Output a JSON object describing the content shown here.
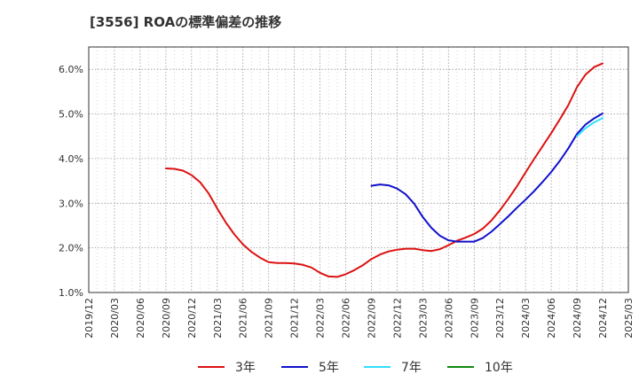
{
  "chart_data": {
    "type": "line",
    "title": "[3556]  ROAの標準偏差の推移",
    "xlabel": "",
    "ylabel": "",
    "ylim": [
      1.0,
      6.5
    ],
    "grid": true,
    "legend_position": "bottom",
    "x_ticks": [
      "2019/12",
      "2020/03",
      "2020/06",
      "2020/09",
      "2020/12",
      "2021/03",
      "2021/06",
      "2021/09",
      "2021/12",
      "2022/03",
      "2022/06",
      "2022/09",
      "2022/12",
      "2023/03",
      "2023/06",
      "2023/09",
      "2023/12",
      "2024/03",
      "2024/06",
      "2024/09",
      "2024/12",
      "2025/03"
    ],
    "y_ticks": [
      "1.0%",
      "2.0%",
      "3.0%",
      "4.0%",
      "5.0%",
      "6.0%"
    ],
    "series": [
      {
        "name": "3年",
        "color": "#dd1111",
        "points": [
          [
            "2020/09",
            3.78
          ],
          [
            "2020/10",
            3.77
          ],
          [
            "2020/11",
            3.73
          ],
          [
            "2020/12",
            3.63
          ],
          [
            "2021/01",
            3.47
          ],
          [
            "2021/02",
            3.22
          ],
          [
            "2021/03",
            2.88
          ],
          [
            "2021/04",
            2.57
          ],
          [
            "2021/05",
            2.3
          ],
          [
            "2021/06",
            2.08
          ],
          [
            "2021/07",
            1.91
          ],
          [
            "2021/08",
            1.78
          ],
          [
            "2021/09",
            1.68
          ],
          [
            "2021/10",
            1.66
          ],
          [
            "2021/11",
            1.66
          ],
          [
            "2021/12",
            1.65
          ],
          [
            "2022/01",
            1.62
          ],
          [
            "2022/02",
            1.56
          ],
          [
            "2022/03",
            1.44
          ],
          [
            "2022/04",
            1.36
          ],
          [
            "2022/05",
            1.35
          ],
          [
            "2022/06",
            1.41
          ],
          [
            "2022/07",
            1.5
          ],
          [
            "2022/08",
            1.61
          ],
          [
            "2022/09",
            1.75
          ],
          [
            "2022/10",
            1.85
          ],
          [
            "2022/11",
            1.92
          ],
          [
            "2022/12",
            1.96
          ],
          [
            "2023/01",
            1.98
          ],
          [
            "2023/02",
            1.98
          ],
          [
            "2023/03",
            1.95
          ],
          [
            "2023/04",
            1.93
          ],
          [
            "2023/05",
            1.97
          ],
          [
            "2023/06",
            2.06
          ],
          [
            "2023/07",
            2.16
          ],
          [
            "2023/08",
            2.23
          ],
          [
            "2023/09",
            2.31
          ],
          [
            "2023/10",
            2.43
          ],
          [
            "2023/11",
            2.61
          ],
          [
            "2023/12",
            2.84
          ],
          [
            "2024/01",
            3.1
          ],
          [
            "2024/02",
            3.38
          ],
          [
            "2024/03",
            3.69
          ],
          [
            "2024/04",
            3.99
          ],
          [
            "2024/05",
            4.28
          ],
          [
            "2024/06",
            4.57
          ],
          [
            "2024/07",
            4.88
          ],
          [
            "2024/08",
            5.2
          ],
          [
            "2024/09",
            5.6
          ],
          [
            "2024/10",
            5.88
          ],
          [
            "2024/11",
            6.05
          ],
          [
            "2024/12",
            6.13
          ]
        ]
      },
      {
        "name": "5年",
        "color": "#1111cc",
        "points": [
          [
            "2022/09",
            3.39
          ],
          [
            "2022/10",
            3.42
          ],
          [
            "2022/11",
            3.4
          ],
          [
            "2022/12",
            3.33
          ],
          [
            "2023/01",
            3.2
          ],
          [
            "2023/02",
            2.99
          ],
          [
            "2023/03",
            2.69
          ],
          [
            "2023/04",
            2.45
          ],
          [
            "2023/05",
            2.27
          ],
          [
            "2023/06",
            2.17
          ],
          [
            "2023/07",
            2.14
          ],
          [
            "2023/08",
            2.14
          ],
          [
            "2023/09",
            2.14
          ],
          [
            "2023/10",
            2.22
          ],
          [
            "2023/11",
            2.36
          ],
          [
            "2023/12",
            2.53
          ],
          [
            "2024/01",
            2.71
          ],
          [
            "2024/02",
            2.9
          ],
          [
            "2024/03",
            3.08
          ],
          [
            "2024/04",
            3.27
          ],
          [
            "2024/05",
            3.48
          ],
          [
            "2024/06",
            3.7
          ],
          [
            "2024/07",
            3.95
          ],
          [
            "2024/08",
            4.23
          ],
          [
            "2024/09",
            4.55
          ],
          [
            "2024/10",
            4.76
          ],
          [
            "2024/11",
            4.9
          ],
          [
            "2024/12",
            5.01
          ]
        ]
      },
      {
        "name": "7年",
        "color": "#33ddff",
        "points": [
          [
            "2024/09",
            4.5
          ],
          [
            "2024/10",
            4.68
          ],
          [
            "2024/11",
            4.81
          ],
          [
            "2024/12",
            4.91
          ]
        ]
      },
      {
        "name": "10年",
        "color": "#118811",
        "points": []
      }
    ]
  }
}
